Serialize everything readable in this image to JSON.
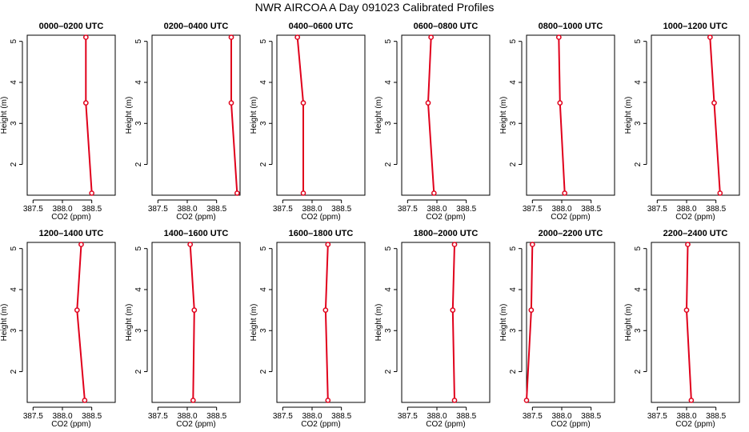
{
  "title": "NWR AIRCOA A  Day 091023  Calibrated Profiles",
  "colors": {
    "series": "#e0001b"
  },
  "chart_data": {
    "type": "line",
    "title": "NWR AIRCOA A  Day 091023  Calibrated Profiles",
    "xlabel": "CO2 (ppm)",
    "ylabel": "Height (m)",
    "xlim": [
      387.4,
      388.9
    ],
    "ylim": [
      1.25,
      5.15
    ],
    "x_ticks": [
      "387.5",
      "388.0",
      "388.5"
    ],
    "x_tick_values": [
      387.5,
      388.0,
      388.5
    ],
    "y_ticks": [
      "2",
      "3",
      "4",
      "5"
    ],
    "y_tick_values": [
      2,
      3,
      4,
      5
    ],
    "grid": false,
    "panels": [
      {
        "title": "0000–0200 UTC",
        "points": [
          {
            "x": 388.4,
            "y": 5.1
          },
          {
            "x": 388.4,
            "y": 3.5
          },
          {
            "x": 388.5,
            "y": 1.3
          }
        ]
      },
      {
        "title": "0200–0400 UTC",
        "points": [
          {
            "x": 388.75,
            "y": 5.1
          },
          {
            "x": 388.75,
            "y": 3.5
          },
          {
            "x": 388.85,
            "y": 1.3
          }
        ]
      },
      {
        "title": "0400–0600 UTC",
        "points": [
          {
            "x": 387.75,
            "y": 5.1
          },
          {
            "x": 387.85,
            "y": 3.5
          },
          {
            "x": 387.85,
            "y": 1.3
          }
        ]
      },
      {
        "title": "0600–0800 UTC",
        "points": [
          {
            "x": 387.9,
            "y": 5.1
          },
          {
            "x": 387.85,
            "y": 3.5
          },
          {
            "x": 387.95,
            "y": 1.3
          }
        ]
      },
      {
        "title": "0800–1000 UTC",
        "points": [
          {
            "x": 387.95,
            "y": 5.1
          },
          {
            "x": 387.97,
            "y": 3.5
          },
          {
            "x": 388.05,
            "y": 1.3
          }
        ]
      },
      {
        "title": "1000–1200 UTC",
        "points": [
          {
            "x": 388.4,
            "y": 5.1
          },
          {
            "x": 388.47,
            "y": 3.5
          },
          {
            "x": 388.57,
            "y": 1.3
          }
        ]
      },
      {
        "title": "1200–1400 UTC",
        "points": [
          {
            "x": 388.32,
            "y": 5.1
          },
          {
            "x": 388.25,
            "y": 3.5
          },
          {
            "x": 388.38,
            "y": 1.3
          }
        ]
      },
      {
        "title": "1400–1600 UTC",
        "points": [
          {
            "x": 388.05,
            "y": 5.1
          },
          {
            "x": 388.12,
            "y": 3.5
          },
          {
            "x": 388.1,
            "y": 1.3
          }
        ]
      },
      {
        "title": "1600–1800 UTC",
        "points": [
          {
            "x": 388.27,
            "y": 5.1
          },
          {
            "x": 388.23,
            "y": 3.5
          },
          {
            "x": 388.27,
            "y": 1.3
          }
        ]
      },
      {
        "title": "1800–2000 UTC",
        "points": [
          {
            "x": 388.3,
            "y": 5.1
          },
          {
            "x": 388.27,
            "y": 3.5
          },
          {
            "x": 388.3,
            "y": 1.3
          }
        ]
      },
      {
        "title": "2000–2200 UTC",
        "points": [
          {
            "x": 387.5,
            "y": 5.1
          },
          {
            "x": 387.48,
            "y": 3.5
          },
          {
            "x": 387.4,
            "y": 1.3
          }
        ]
      },
      {
        "title": "2200–2400 UTC",
        "points": [
          {
            "x": 388.02,
            "y": 5.1
          },
          {
            "x": 388.0,
            "y": 3.5
          },
          {
            "x": 388.08,
            "y": 1.3
          }
        ]
      }
    ]
  }
}
